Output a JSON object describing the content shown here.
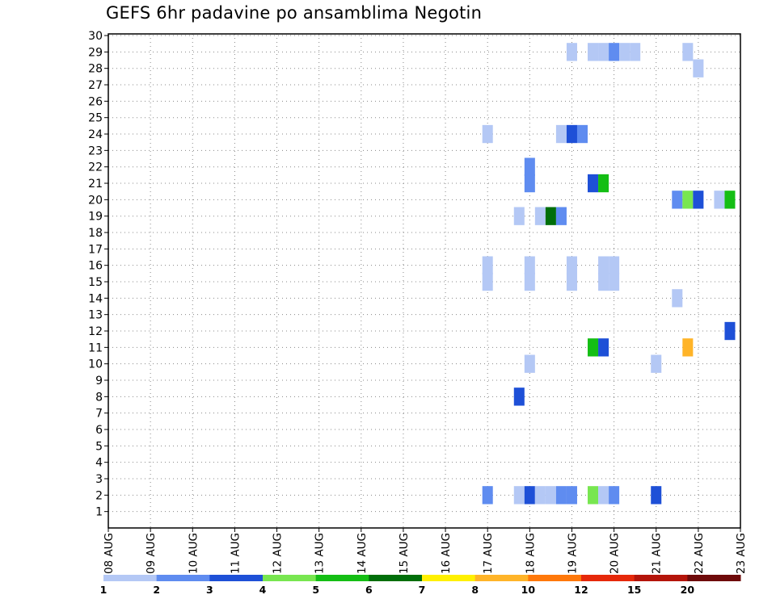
{
  "chart_data": {
    "type": "heatmap",
    "title": "GEFS 6hr padavine po ansamblima Negotin",
    "x_tick_labels": [
      "08 AUG",
      "09 AUG",
      "10 AUG",
      "11 AUG",
      "12 AUG",
      "13 AUG",
      "14 AUG",
      "15 AUG",
      "16 AUG",
      "17 AUG",
      "18 AUG",
      "19 AUG",
      "20 AUG",
      "21 AUG",
      "22 AUG",
      "23 AUG"
    ],
    "y_tick_labels": [
      "1",
      "2",
      "3",
      "4",
      "5",
      "6",
      "7",
      "8",
      "9",
      "10",
      "11",
      "12",
      "13",
      "14",
      "15",
      "16",
      "17",
      "18",
      "19",
      "20",
      "21",
      "22",
      "23",
      "24",
      "25",
      "26",
      "27",
      "28",
      "29",
      "30"
    ],
    "x_range_days": [
      0,
      15
    ],
    "y_range": [
      0,
      30
    ],
    "grid": true,
    "legend": {
      "thresholds": [
        "1",
        "2",
        "3",
        "4",
        "5",
        "6",
        "7",
        "8",
        "10",
        "12",
        "15",
        "20"
      ],
      "colors": [
        "#b4c8f5",
        "#5f8cf0",
        "#1e50d7",
        "#78e650",
        "#14be14",
        "#006e0a",
        "#fff000",
        "#ffb428",
        "#ff780a",
        "#e6280a",
        "#b4140a",
        "#6e0a0a"
      ]
    },
    "cells_note": "each cell: member row, time in days since 08 AUG 00Z, color class index 0-11",
    "cells": [
      {
        "m": 29,
        "t": 11.0,
        "c": 0
      },
      {
        "m": 29,
        "t": 11.5,
        "c": 0
      },
      {
        "m": 29,
        "t": 11.75,
        "c": 0
      },
      {
        "m": 29,
        "t": 12.0,
        "c": 1
      },
      {
        "m": 29,
        "t": 12.25,
        "c": 0
      },
      {
        "m": 29,
        "t": 12.5,
        "c": 0
      },
      {
        "m": 29,
        "t": 13.75,
        "c": 0
      },
      {
        "m": 28,
        "t": 14.0,
        "c": 0
      },
      {
        "m": 24,
        "t": 9.0,
        "c": 0
      },
      {
        "m": 24,
        "t": 10.75,
        "c": 0
      },
      {
        "m": 24,
        "t": 11.0,
        "c": 2
      },
      {
        "m": 24,
        "t": 11.25,
        "c": 1
      },
      {
        "m": 22,
        "t": 10.0,
        "c": 1
      },
      {
        "m": 21,
        "t": 10.0,
        "c": 1
      },
      {
        "m": 21,
        "t": 11.5,
        "c": 2
      },
      {
        "m": 21,
        "t": 11.75,
        "c": 4
      },
      {
        "m": 20,
        "t": 13.5,
        "c": 1
      },
      {
        "m": 20,
        "t": 13.75,
        "c": 3
      },
      {
        "m": 20,
        "t": 14.0,
        "c": 2
      },
      {
        "m": 20,
        "t": 14.5,
        "c": 0
      },
      {
        "m": 20,
        "t": 14.75,
        "c": 4
      },
      {
        "m": 19,
        "t": 9.75,
        "c": 0
      },
      {
        "m": 19,
        "t": 10.25,
        "c": 0
      },
      {
        "m": 19,
        "t": 10.5,
        "c": 5
      },
      {
        "m": 19,
        "t": 10.75,
        "c": 1
      },
      {
        "m": 16,
        "t": 9.0,
        "c": 0
      },
      {
        "m": 16,
        "t": 10.0,
        "c": 0
      },
      {
        "m": 16,
        "t": 11.0,
        "c": 0
      },
      {
        "m": 16,
        "t": 11.75,
        "c": 0
      },
      {
        "m": 16,
        "t": 12.0,
        "c": 0
      },
      {
        "m": 15,
        "t": 9.0,
        "c": 0
      },
      {
        "m": 15,
        "t": 10.0,
        "c": 0
      },
      {
        "m": 15,
        "t": 11.0,
        "c": 0
      },
      {
        "m": 15,
        "t": 11.75,
        "c": 0
      },
      {
        "m": 15,
        "t": 12.0,
        "c": 0
      },
      {
        "m": 14,
        "t": 13.5,
        "c": 0
      },
      {
        "m": 12,
        "t": 14.75,
        "c": 2
      },
      {
        "m": 11,
        "t": 11.5,
        "c": 4
      },
      {
        "m": 11,
        "t": 11.75,
        "c": 2
      },
      {
        "m": 11,
        "t": 13.75,
        "c": 7
      },
      {
        "m": 10,
        "t": 10.0,
        "c": 0
      },
      {
        "m": 10,
        "t": 13.0,
        "c": 0
      },
      {
        "m": 8,
        "t": 9.75,
        "c": 2
      },
      {
        "m": 2,
        "t": 9.0,
        "c": 1
      },
      {
        "m": 2,
        "t": 9.75,
        "c": 0
      },
      {
        "m": 2,
        "t": 10.0,
        "c": 2
      },
      {
        "m": 2,
        "t": 10.25,
        "c": 0
      },
      {
        "m": 2,
        "t": 10.5,
        "c": 0
      },
      {
        "m": 2,
        "t": 10.75,
        "c": 1
      },
      {
        "m": 2,
        "t": 11.0,
        "c": 1
      },
      {
        "m": 2,
        "t": 11.5,
        "c": 3
      },
      {
        "m": 2,
        "t": 11.75,
        "c": 0
      },
      {
        "m": 2,
        "t": 12.0,
        "c": 1
      },
      {
        "m": 2,
        "t": 13.0,
        "c": 2
      }
    ]
  }
}
